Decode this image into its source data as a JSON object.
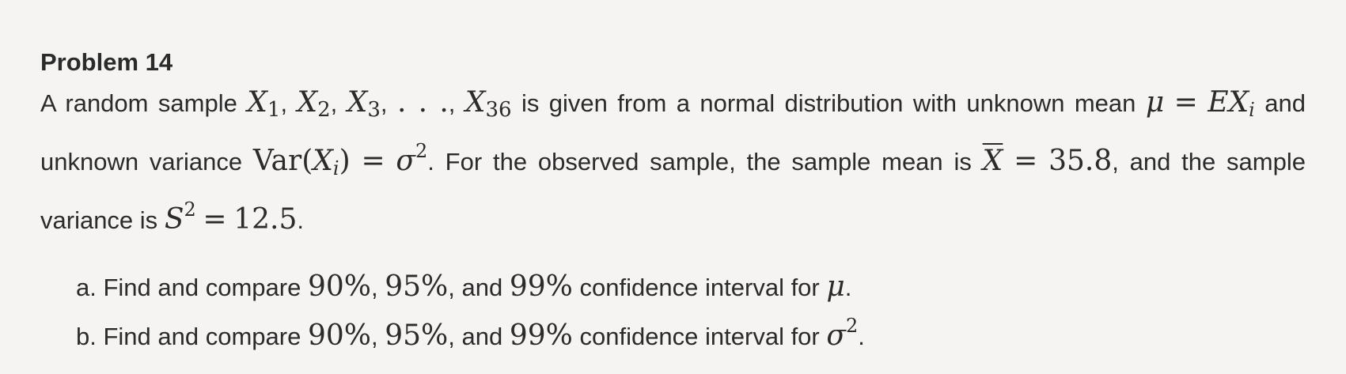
{
  "problem": {
    "title": "Problem 14",
    "intro_text": "A random sample",
    "sample_x": "X",
    "sub_1": "1",
    "sub_2": "2",
    "sub_3": "3",
    "dots": ". . .",
    "sub_36": "36",
    "after_sample": "is given from a normal distribution with unknown mean",
    "mu": "μ",
    "equals": "=",
    "EX": "EX",
    "sub_i": "i",
    "and": "and",
    "unknown_variance": "unknown variance",
    "var": "Var",
    "open_paren": "(",
    "close_paren": ")",
    "sigma": "σ",
    "sup_2": "2",
    "observed_text": ". For the observed sample, the sample mean is",
    "xbar": "X",
    "mean_value": "35.8",
    "and_sample": ", and the sample",
    "variance_is": "variance is",
    "S": "S",
    "variance_value": "12.5",
    "period": ".",
    "comma": ",",
    "comma_space": ", "
  },
  "parts": [
    {
      "letter": "a.",
      "find_text": "Find and compare",
      "p90": "90%",
      "p95": "95%",
      "and_text": ", and",
      "p99": "99%",
      "ci_text": "confidence interval for",
      "param": "μ",
      "param_sup": "",
      "end": "."
    },
    {
      "letter": "b.",
      "find_text": "Find and compare",
      "p90": "90%",
      "p95": "95%",
      "and_text": ", and",
      "p99": "99%",
      "ci_text": "confidence interval for",
      "param": "σ",
      "param_sup": "2",
      "end": "."
    }
  ]
}
